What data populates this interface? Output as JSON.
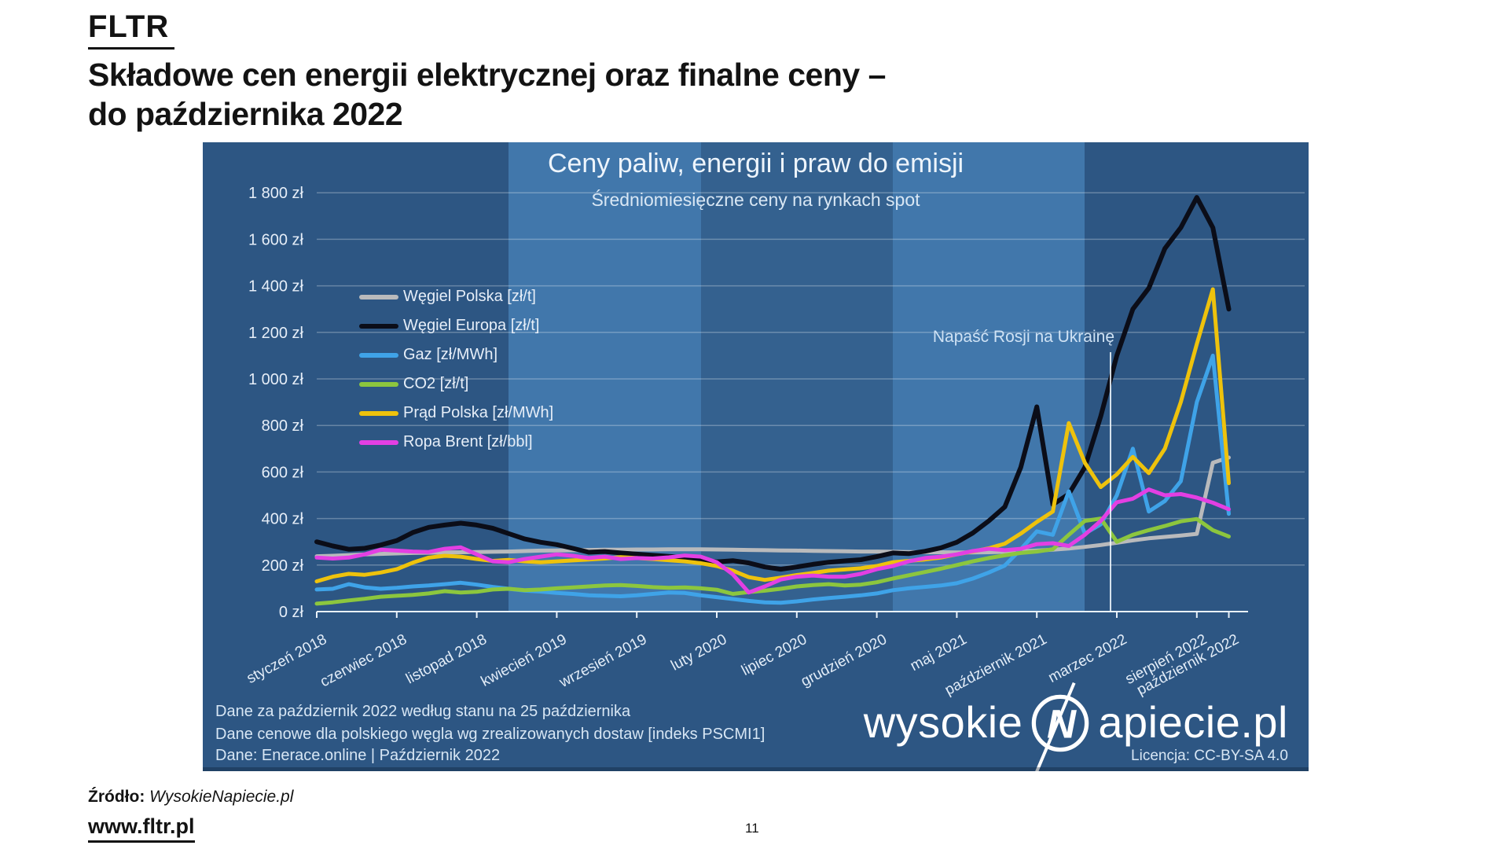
{
  "slide": {
    "logo": "FLTR",
    "title_line1": "Składowe cen energii elektrycznej oraz finalne ceny –",
    "title_line2": "do października 2022",
    "source_label": "Źródło:",
    "source_value": "WysokieNapiecie.pl",
    "footer_link": "www.fltr.pl",
    "page_number": "11"
  },
  "chart": {
    "title": "Ceny paliw, energii i praw do emisji",
    "subtitle": "Średniomiesięczne ceny na rynkach spot",
    "annotation": "Napaść Rosji na Ukrainę",
    "note_line1": "Dane za październik 2022 według stanu na 25 października",
    "note_line2": "Dane cenowe dla polskiego węgla wg zrealizowanych dostaw [indeks PSCMI1]",
    "source_line": "Dane: Enerace.online   |   Październik 2022",
    "license": "Licencja: CC-BY-SA 4.0",
    "brand_prefix": "wysokie",
    "brand_suffix": "apiecie.pl",
    "colors": {
      "background": "#2d5683",
      "band_light": "#4177ab",
      "band_medium": "#34618f",
      "axis": "#e9f1f9",
      "gridline": "rgba(255,255,255,0.28)",
      "text": "#e6eef8"
    }
  },
  "chart_data": {
    "type": "line",
    "title": "Ceny paliw, energii i praw do emisji",
    "subtitle": "Średniomiesięczne ceny na rynkach spot",
    "ylabel": "zł",
    "ylim": [
      0,
      1800
    ],
    "grid": true,
    "legend_position": "upper-left",
    "x_unit": "month",
    "x_start": "styczeń 2018",
    "x_end": "październik 2022",
    "x_ticks": [
      {
        "m": 0,
        "label": "styczeń 2018"
      },
      {
        "m": 5,
        "label": "czerwiec 2018"
      },
      {
        "m": 10,
        "label": "listopad 2018"
      },
      {
        "m": 15,
        "label": "kwiecień 2019"
      },
      {
        "m": 20,
        "label": "wrzesień 2019"
      },
      {
        "m": 25,
        "label": "luty 2020"
      },
      {
        "m": 30,
        "label": "lipiec 2020"
      },
      {
        "m": 35,
        "label": "grudzień 2020"
      },
      {
        "m": 40,
        "label": "maj 2021"
      },
      {
        "m": 45,
        "label": "październik 2021"
      },
      {
        "m": 50,
        "label": "marzec 2022"
      },
      {
        "m": 55,
        "label": "sierpień 2022"
      },
      {
        "m": 57,
        "label": "październik 2022"
      }
    ],
    "y_ticks": [
      {
        "v": 0,
        "label": "0 zł"
      },
      {
        "v": 200,
        "label": "200 zł"
      },
      {
        "v": 400,
        "label": "400 zł"
      },
      {
        "v": 600,
        "label": "600 zł"
      },
      {
        "v": 800,
        "label": "800 zł"
      },
      {
        "v": 1000,
        "label": "1 000 zł"
      },
      {
        "v": 1200,
        "label": "1 200 zł"
      },
      {
        "v": 1400,
        "label": "1 400 zł"
      },
      {
        "v": 1600,
        "label": "1 600 zł"
      },
      {
        "v": 1800,
        "label": "1 800 zł"
      }
    ],
    "year_bands": [
      {
        "from_month": 12,
        "to_month": 24,
        "shade": "light"
      },
      {
        "from_month": 24,
        "to_month": 36,
        "shade": "medium"
      },
      {
        "from_month": 36,
        "to_month": 48,
        "shade": "light"
      }
    ],
    "annotation": {
      "text": "Napaść Rosji na Ukrainę",
      "month_index": 49.6
    },
    "series": [
      {
        "name": "Węgiel Polska [zł/t]",
        "color": "#b9babc",
        "width": 5,
        "values": [
          238,
          240,
          243,
          246,
          248,
          250,
          252,
          253,
          254,
          255,
          256,
          257,
          258,
          260,
          262,
          263,
          264,
          265,
          266,
          266,
          267,
          267,
          268,
          268,
          268,
          267,
          266,
          265,
          264,
          263,
          262,
          261,
          260,
          259,
          258,
          258,
          257,
          256,
          255,
          255,
          254,
          254,
          255,
          257,
          259,
          262,
          266,
          271,
          278,
          286,
          296,
          306,
          315,
          321,
          327,
          334,
          640,
          662
        ]
      },
      {
        "name": "Węgiel Europa [zł/t]",
        "color": "#0b0d18",
        "width": 6,
        "values": [
          300,
          282,
          268,
          272,
          286,
          305,
          340,
          362,
          372,
          380,
          372,
          358,
          335,
          312,
          298,
          288,
          272,
          255,
          258,
          252,
          247,
          242,
          237,
          232,
          222,
          214,
          219,
          209,
          192,
          182,
          192,
          203,
          212,
          218,
          223,
          236,
          252,
          249,
          259,
          274,
          298,
          338,
          390,
          450,
          620,
          880,
          460,
          505,
          620,
          840,
          1100,
          1300,
          1390,
          1560,
          1650,
          1780,
          1650,
          1300
        ]
      },
      {
        "name": "Gaz [zł/MWh]",
        "color": "#3fa3e8",
        "width": 5,
        "values": [
          95,
          98,
          118,
          104,
          98,
          102,
          108,
          112,
          118,
          124,
          116,
          106,
          98,
          90,
          86,
          80,
          76,
          70,
          68,
          66,
          70,
          76,
          82,
          80,
          70,
          62,
          54,
          46,
          40,
          38,
          44,
          52,
          58,
          64,
          70,
          78,
          92,
          100,
          106,
          112,
          122,
          142,
          168,
          198,
          268,
          345,
          330,
          517,
          335,
          375,
          500,
          700,
          430,
          475,
          560,
          900,
          1100,
          420
        ]
      },
      {
        "name": "CO2 [zł/t]",
        "color": "#8cc63e",
        "width": 5,
        "values": [
          34,
          40,
          48,
          55,
          64,
          68,
          72,
          78,
          88,
          82,
          85,
          95,
          98,
          92,
          95,
          100,
          104,
          108,
          112,
          114,
          110,
          105,
          102,
          104,
          100,
          94,
          76,
          84,
          90,
          98,
          108,
          114,
          118,
          112,
          116,
          126,
          142,
          156,
          170,
          184,
          200,
          216,
          230,
          242,
          252,
          258,
          268,
          330,
          390,
          400,
          300,
          330,
          350,
          368,
          388,
          398,
          350,
          323
        ]
      },
      {
        "name": "Prąd Polska [zł/MWh]",
        "color": "#eec20c",
        "width": 5,
        "values": [
          130,
          150,
          162,
          158,
          168,
          182,
          210,
          232,
          240,
          236,
          226,
          218,
          222,
          216,
          212,
          216,
          220,
          224,
          228,
          234,
          230,
          226,
          221,
          216,
          208,
          196,
          176,
          148,
          136,
          146,
          157,
          166,
          176,
          181,
          186,
          196,
          212,
          218,
          224,
          232,
          246,
          258,
          272,
          292,
          335,
          385,
          430,
          810,
          640,
          535,
          590,
          665,
          595,
          700,
          900,
          1150,
          1385,
          552
        ]
      },
      {
        "name": "Ropa Brent [zł/bbl]",
        "color": "#e33fe3",
        "width": 5,
        "values": [
          232,
          228,
          232,
          246,
          266,
          262,
          258,
          256,
          270,
          276,
          246,
          216,
          212,
          226,
          236,
          246,
          240,
          230,
          236,
          226,
          230,
          228,
          233,
          241,
          236,
          212,
          160,
          82,
          108,
          138,
          150,
          155,
          150,
          150,
          162,
          182,
          196,
          216,
          230,
          236,
          246,
          260,
          270,
          264,
          270,
          290,
          294,
          282,
          330,
          390,
          470,
          485,
          525,
          500,
          505,
          490,
          468,
          440
        ]
      }
    ]
  }
}
